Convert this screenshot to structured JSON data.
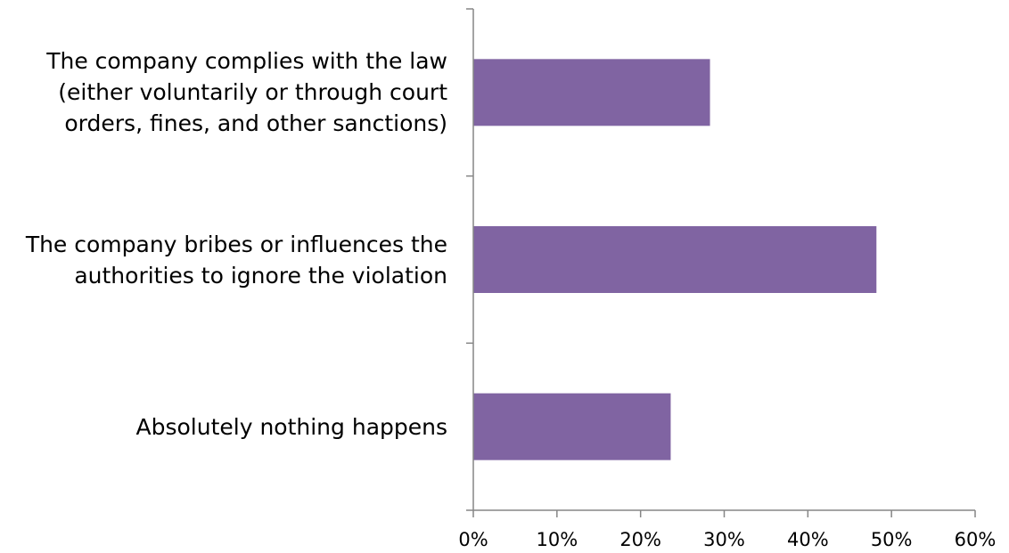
{
  "chart_data": {
    "type": "bar",
    "orientation": "horizontal",
    "categories": [
      [
        "The company complies with the law",
        "(either voluntarily or through court",
        "orders, fines, and other sanctions)"
      ],
      [
        "The company bribes or influences the",
        "authorities to ignore the violation"
      ],
      [
        "Absolutely nothing happens"
      ]
    ],
    "values": [
      0.283,
      0.482,
      0.236
    ],
    "xlim": [
      0,
      0.6
    ],
    "xticks": [
      0,
      0.1,
      0.2,
      0.3,
      0.4,
      0.5,
      0.6
    ],
    "xtick_labels": [
      "0%",
      "10%",
      "20%",
      "30%",
      "40%",
      "50%",
      "60%"
    ],
    "title": "",
    "xlabel": "",
    "ylabel": "",
    "grid": false,
    "legend": "none",
    "bar_color": "#8064A2"
  }
}
